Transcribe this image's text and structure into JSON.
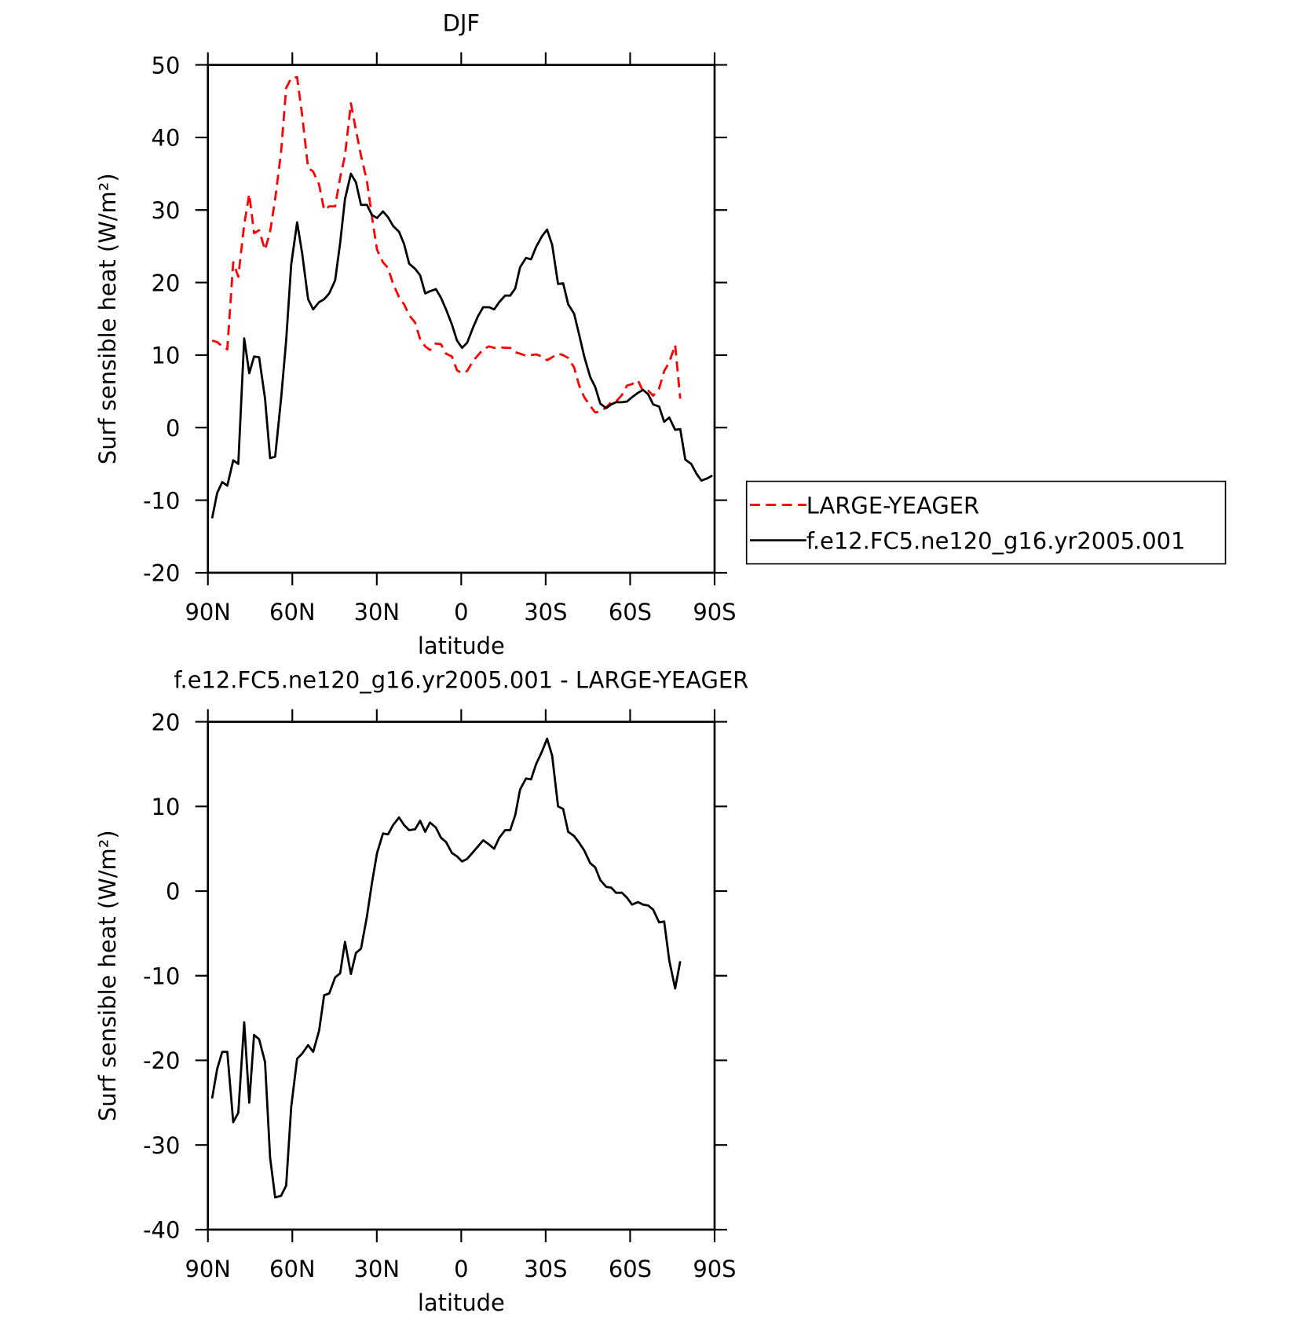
{
  "chart_data": [
    {
      "type": "line",
      "title": "DJF",
      "xlabel": "latitude",
      "ylabel": "Surf sensible heat (W/m²)",
      "x": [
        88.5,
        86.7,
        84.9,
        83.1,
        81.0,
        79.2,
        77.1,
        75.3,
        73.6,
        71.8,
        69.7,
        67.9,
        66.1,
        64.0,
        62.2,
        60.4,
        58.3,
        56.5,
        54.4,
        52.6,
        50.5,
        48.7,
        46.9,
        44.8,
        43.0,
        41.3,
        39.2,
        37.4,
        35.6,
        33.5,
        31.7,
        29.9,
        27.8,
        26.0,
        24.2,
        22.1,
        20.3,
        18.5,
        16.4,
        14.6,
        12.8,
        11.1,
        9.0,
        7.2,
        5.4,
        3.3,
        1.5,
        -0.3,
        -2.1,
        -4.2,
        -6.0,
        -7.8,
        -9.9,
        -11.7,
        -13.5,
        -15.6,
        -17.4,
        -19.2,
        -20.9,
        -23.0,
        -24.8,
        -26.6,
        -28.7,
        -30.5,
        -32.3,
        -34.4,
        -36.2,
        -38.0,
        -40.1,
        -41.9,
        -43.7,
        -45.8,
        -47.6,
        -49.4,
        -51.5,
        -53.3,
        -55.0,
        -57.1,
        -58.9,
        -60.7,
        -62.8,
        -64.6,
        -66.4,
        -68.2,
        -70.3,
        -72.1,
        -73.9,
        -76.0,
        -77.8,
        -79.6,
        -81.7,
        -83.5,
        -85.3,
        -87.4,
        -89.2
      ],
      "series": [
        {
          "name": "LARGE-YEAGER",
          "color": "#ff0000",
          "dash": true,
          "values": [
            12,
            11.8,
            11.2,
            10.8,
            22.8,
            20.8,
            28,
            32.2,
            26.8,
            27.2,
            24.5,
            27,
            31.5,
            38,
            46.8,
            48.2,
            48.3,
            43,
            35.8,
            35.3,
            33.5,
            30,
            30.5,
            30.5,
            34.5,
            37.5,
            44.7,
            41,
            37.5,
            34,
            29,
            24.5,
            22.8,
            22,
            19.8,
            18,
            17,
            15.5,
            14.5,
            12.2,
            11.2,
            10.7,
            11.6,
            11.5,
            10.2,
            9.8,
            7.9,
            7.5,
            7.8,
            9.2,
            10,
            10.8,
            11.2,
            11,
            11.1,
            11,
            11,
            10.4,
            10.2,
            9.9,
            10,
            10.1,
            9.8,
            9.3,
            9.7,
            10.2,
            10,
            9.6,
            8.3,
            5.8,
            4.2,
            3,
            2.1,
            2.2,
            2.8,
            3.5,
            3.6,
            4.5,
            5.8,
            6,
            6.5,
            5,
            5.1,
            4.4,
            5.4,
            7.8,
            9,
            11.4,
            4,
            null,
            null,
            null,
            null,
            null,
            null
          ]
        },
        {
          "name": "f.e12.FC5.ne120_g16.yr2005.001",
          "color": "#000000",
          "dash": false,
          "values": [
            -12.5,
            -9,
            -7.5,
            -8,
            -4.5,
            -5,
            12.3,
            7.5,
            9.8,
            9.7,
            4,
            -4.2,
            -4,
            4,
            12,
            22.5,
            28.3,
            24,
            17.7,
            16.3,
            17.3,
            17.7,
            18.5,
            20.3,
            25.5,
            31.5,
            35,
            33.8,
            30.7,
            30.7,
            29.3,
            28.9,
            29.8,
            29,
            27.8,
            27,
            25.3,
            22.6,
            21.9,
            21,
            18.5,
            18.8,
            19.1,
            17.9,
            16.3,
            14.2,
            12,
            11,
            11.7,
            13.8,
            15.4,
            16.6,
            16.6,
            16.3,
            17.3,
            18.2,
            18.2,
            19.2,
            22.1,
            23.4,
            23.2,
            24.9,
            26.4,
            27.3,
            25.2,
            19.8,
            19.9,
            17,
            15.7,
            12.8,
            9.8,
            7,
            5.6,
            3.3,
            2.7,
            3.2,
            3.5,
            3.5,
            3.6,
            4.2,
            4.8,
            5.2,
            4.6,
            3.2,
            2.9,
            0.8,
            1.4,
            -0.3,
            -0.2,
            -4.4,
            -5,
            -6.3,
            -7.3,
            -7,
            -6.6
          ]
        }
      ],
      "xlim": [
        90,
        -90
      ],
      "xticks": [
        {
          "value": 90,
          "label": "90N"
        },
        {
          "value": 60,
          "label": "60N"
        },
        {
          "value": 30,
          "label": "30N"
        },
        0,
        {
          "value": -30,
          "label": "30S"
        },
        {
          "value": -60,
          "label": "60S"
        },
        {
          "value": -90,
          "label": "90S"
        }
      ],
      "ylim": [
        -20,
        50
      ],
      "yticks": [
        -20,
        -10,
        0,
        10,
        20,
        30,
        40,
        50
      ],
      "legend": "right"
    },
    {
      "type": "line",
      "title": "f.e12.FC5.ne120_g16.yr2005.001 - LARGE-YEAGER",
      "xlabel": "latitude",
      "ylabel": "Surf sensible heat (W/m²)",
      "x": [
        88.5,
        86.7,
        84.9,
        83.1,
        81.0,
        79.2,
        77.1,
        75.3,
        73.6,
        71.8,
        69.7,
        67.9,
        66.1,
        64.0,
        62.2,
        60.4,
        58.3,
        56.5,
        54.4,
        52.6,
        50.5,
        48.7,
        46.9,
        44.8,
        43.0,
        41.3,
        39.2,
        37.4,
        35.6,
        33.5,
        31.7,
        29.9,
        27.8,
        26.0,
        24.2,
        22.1,
        20.3,
        18.5,
        16.4,
        14.6,
        12.8,
        11.1,
        9.0,
        7.2,
        5.4,
        3.3,
        1.5,
        -0.3,
        -2.1,
        -4.2,
        -6.0,
        -7.8,
        -9.9,
        -11.7,
        -13.5,
        -15.6,
        -17.4,
        -19.2,
        -20.9,
        -23.0,
        -24.8,
        -26.6,
        -28.7,
        -30.5,
        -32.3,
        -34.4,
        -36.2,
        -38.0,
        -40.1,
        -41.9,
        -43.7,
        -45.8,
        -47.6,
        -49.4,
        -51.5,
        -53.3,
        -55.0,
        -57.1,
        -58.9,
        -60.7,
        -62.8,
        -64.6,
        -66.4,
        -68.2,
        -70.3,
        -72.1,
        -73.9,
        -76.0,
        -77.8,
        -79.6,
        -81.7,
        -83.5,
        -85.3,
        -87.4,
        -89.2
      ],
      "values": [
        -24.5,
        -21,
        -19,
        -19,
        -27.3,
        -26.2,
        -15.5,
        -25,
        -17,
        -17.5,
        -20.2,
        -31.5,
        -36.2,
        -36,
        -34.8,
        -25.5,
        -19.8,
        -19.2,
        -18.2,
        -19,
        -16.5,
        -12.3,
        -12.1,
        -10.2,
        -9.7,
        -6,
        -9.8,
        -7.3,
        -6.8,
        -3,
        1,
        4.5,
        6.8,
        6.7,
        7.8,
        8.7,
        7.8,
        7.2,
        7.3,
        8.3,
        7,
        8.1,
        7.5,
        6.3,
        5.8,
        4.5,
        4.1,
        3.5,
        3.8,
        4.6,
        5.3,
        6,
        5.5,
        5,
        6.3,
        7.2,
        7.2,
        9,
        12,
        13.3,
        13.2,
        15,
        16.5,
        18,
        16,
        10,
        9.7,
        7,
        6.5,
        5.7,
        4.8,
        3.3,
        2.8,
        1.3,
        0.5,
        0.4,
        -0.2,
        -0.2,
        -0.8,
        -1.6,
        -1.3,
        -1.6,
        -1.7,
        -2.2,
        -3.7,
        -3.6,
        -8.2,
        -11.5,
        -8.3,
        null,
        null,
        null,
        null,
        null,
        null
      ],
      "color": "#000000",
      "xlim": [
        90,
        -90
      ],
      "xticks": [
        {
          "value": 90,
          "label": "90N"
        },
        {
          "value": 60,
          "label": "60N"
        },
        {
          "value": 30,
          "label": "30N"
        },
        0,
        {
          "value": -30,
          "label": "30S"
        },
        {
          "value": -60,
          "label": "60S"
        },
        {
          "value": -90,
          "label": "90S"
        }
      ],
      "ylim": [
        -40,
        20
      ],
      "yticks": [
        -40,
        -30,
        -20,
        -10,
        0,
        10,
        20
      ]
    }
  ]
}
